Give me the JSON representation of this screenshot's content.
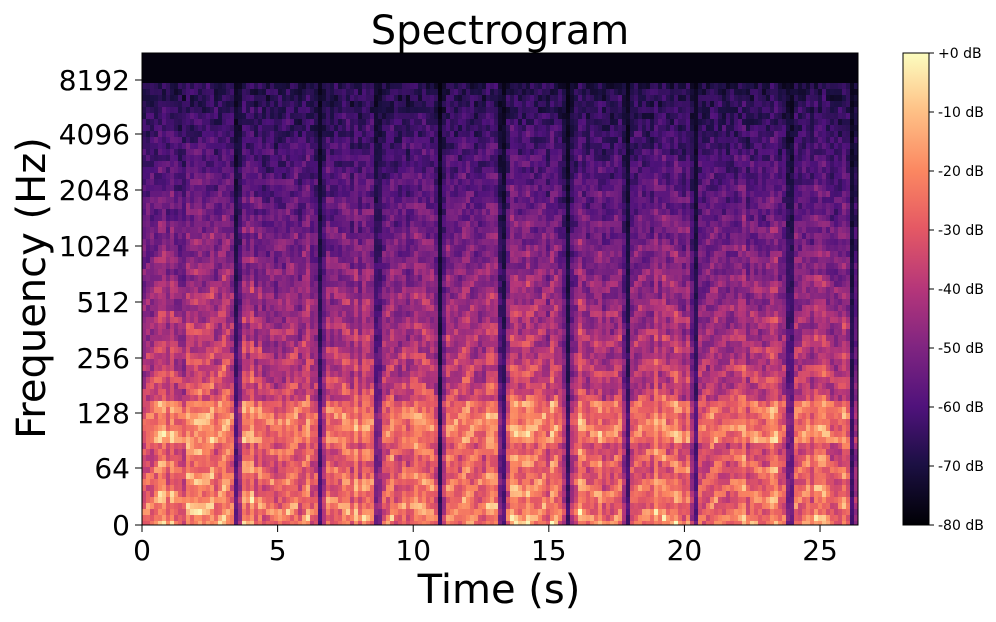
{
  "chart_data": {
    "type": "heatmap",
    "title": "Spectrogram",
    "xlabel": "Time (s)",
    "ylabel": "Frequency (Hz)",
    "xlim": [
      0,
      26.4
    ],
    "x_ticks": [
      0,
      5,
      10,
      15,
      20,
      25
    ],
    "x_tick_labels": [
      "0",
      "5",
      "10",
      "15",
      "20",
      "25"
    ],
    "y_scale": "symlog",
    "y_ticks": [
      0,
      64,
      128,
      256,
      512,
      1024,
      2048,
      4096,
      8192
    ],
    "y_tick_labels": [
      "0",
      "64",
      "128",
      "256",
      "512",
      "1024",
      "2048",
      "4096",
      "8192"
    ],
    "ylim": [
      0,
      11025
    ],
    "colormap": "magma",
    "colorbar": {
      "label": "",
      "range_db": [
        -80,
        0
      ],
      "ticks": [
        0,
        -10,
        -20,
        -30,
        -40,
        -50,
        -60,
        -70,
        -80
      ],
      "tick_labels": [
        "+0 dB",
        "-10 dB",
        "-20 dB",
        "-30 dB",
        "-40 dB",
        "-50 dB",
        "-60 dB",
        "-70 dB",
        "-80 dB"
      ]
    },
    "silent_gaps_s": [
      3.5,
      6.6,
      8.7,
      11.0,
      13.3,
      15.7,
      17.9,
      20.4,
      23.9,
      26.2
    ],
    "colors": {
      "bright_band": "#fcfdbf",
      "mid_band": "#e85a6e",
      "low_energy": "#5d177f",
      "silence": "#000004"
    }
  }
}
